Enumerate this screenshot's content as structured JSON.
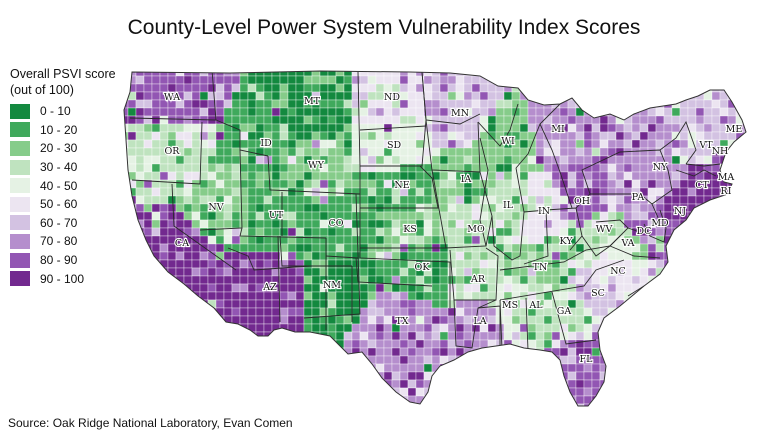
{
  "title": "County-Level Power System Vulnerability Index Scores",
  "legend": {
    "title_line1": "Overall PSVI score",
    "title_line2": "(out of 100)",
    "items": [
      {
        "label": "0 - 10",
        "color": "#13893f"
      },
      {
        "label": "10 - 20",
        "color": "#3fa95c"
      },
      {
        "label": "20 - 30",
        "color": "#86cc8a"
      },
      {
        "label": "30 - 40",
        "color": "#bfe3bf"
      },
      {
        "label": "40 - 50",
        "color": "#e5f2e4"
      },
      {
        "label": "50 - 60",
        "color": "#ece5f1"
      },
      {
        "label": "60 - 70",
        "color": "#d3c2e2"
      },
      {
        "label": "70 - 80",
        "color": "#b58ecd"
      },
      {
        "label": "80 - 90",
        "color": "#9256b3"
      },
      {
        "label": "90 - 100",
        "color": "#72298f"
      }
    ]
  },
  "states": [
    {
      "abbr": "WA",
      "score_bin": 8
    },
    {
      "abbr": "OR",
      "score_bin": 3
    },
    {
      "abbr": "CA",
      "score_bin": 9
    },
    {
      "abbr": "NV",
      "score_bin": 2
    },
    {
      "abbr": "ID",
      "score_bin": 1
    },
    {
      "abbr": "MT",
      "score_bin": 0
    },
    {
      "abbr": "WY",
      "score_bin": 2
    },
    {
      "abbr": "UT",
      "score_bin": 1
    },
    {
      "abbr": "AZ",
      "score_bin": 9
    },
    {
      "abbr": "CO",
      "score_bin": 1
    },
    {
      "abbr": "NM",
      "score_bin": 0
    },
    {
      "abbr": "ND",
      "score_bin": 5
    },
    {
      "abbr": "SD",
      "score_bin": 4
    },
    {
      "abbr": "NE",
      "score_bin": 1
    },
    {
      "abbr": "KS",
      "score_bin": 2
    },
    {
      "abbr": "OK",
      "score_bin": 1
    },
    {
      "abbr": "TX",
      "score_bin": 7
    },
    {
      "abbr": "MN",
      "score_bin": 6
    },
    {
      "abbr": "IA",
      "score_bin": 2
    },
    {
      "abbr": "MO",
      "score_bin": 3
    },
    {
      "abbr": "AR",
      "score_bin": 3
    },
    {
      "abbr": "LA",
      "score_bin": 7
    },
    {
      "abbr": "WI",
      "score_bin": 2
    },
    {
      "abbr": "IL",
      "score_bin": 3
    },
    {
      "abbr": "MI",
      "score_bin": 7
    },
    {
      "abbr": "IN",
      "score_bin": 5
    },
    {
      "abbr": "OH",
      "score_bin": 8
    },
    {
      "abbr": "KY",
      "score_bin": 3
    },
    {
      "abbr": "TN",
      "score_bin": 2
    },
    {
      "abbr": "MS",
      "score_bin": 4
    },
    {
      "abbr": "AL",
      "score_bin": 3
    },
    {
      "abbr": "GA",
      "score_bin": 3
    },
    {
      "abbr": "FL",
      "score_bin": 8
    },
    {
      "abbr": "SC",
      "score_bin": 6
    },
    {
      "abbr": "NC",
      "score_bin": 5
    },
    {
      "abbr": "VA",
      "score_bin": 4
    },
    {
      "abbr": "WV",
      "score_bin": 3
    },
    {
      "abbr": "PA",
      "score_bin": 7
    },
    {
      "abbr": "NY",
      "score_bin": 7
    },
    {
      "abbr": "VT",
      "score_bin": 6
    },
    {
      "abbr": "NH",
      "score_bin": 8
    },
    {
      "abbr": "ME",
      "score_bin": 6
    },
    {
      "abbr": "MA",
      "score_bin": 9
    },
    {
      "abbr": "CT",
      "score_bin": 9
    },
    {
      "abbr": "RI",
      "score_bin": 9
    },
    {
      "abbr": "NJ",
      "score_bin": 9
    },
    {
      "abbr": "MD",
      "score_bin": 8
    },
    {
      "abbr": "DC",
      "score_bin": 8
    }
  ],
  "source": "Source: Oak Ridge National Laboratory, Evan Comen"
}
